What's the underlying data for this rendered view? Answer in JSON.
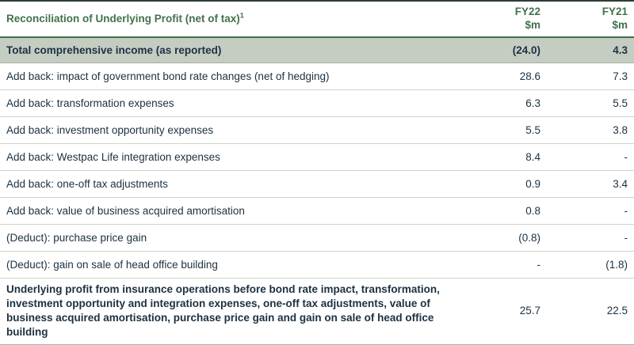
{
  "table": {
    "title": "Reconciliation of Underlying Profit (net of tax)",
    "footnote_marker": "1",
    "columns": [
      {
        "label": "FY22",
        "unit": "$m"
      },
      {
        "label": "FY21",
        "unit": "$m"
      }
    ],
    "rows": [
      {
        "label": "Total comprehensive income (as reported)",
        "fy22": "(24.0)",
        "fy21": "4.3",
        "style": "highlight"
      },
      {
        "label": "Add back: impact of government bond rate changes (net of hedging)",
        "fy22": "28.6",
        "fy21": "7.3"
      },
      {
        "label": "Add back: transformation expenses",
        "fy22": "6.3",
        "fy21": "5.5"
      },
      {
        "label": "Add back: investment opportunity expenses",
        "fy22": "5.5",
        "fy21": "3.8"
      },
      {
        "label": "Add back: Westpac Life integration expenses",
        "fy22": "8.4",
        "fy21": "-"
      },
      {
        "label": "Add back: one-off tax adjustments",
        "fy22": "0.9",
        "fy21": "3.4"
      },
      {
        "label": "Add back: value of business acquired amortisation",
        "fy22": "0.8",
        "fy21": "-"
      },
      {
        "label": "(Deduct): purchase price gain",
        "fy22": "(0.8)",
        "fy21": "-"
      },
      {
        "label": "(Deduct): gain on sale of head office building",
        "fy22": "-",
        "fy21": "(1.8)"
      },
      {
        "label": "Underlying profit from insurance operations before bond rate impact, transformation, investment opportunity and integration expenses, one-off tax adjustments, value of business acquired amortisation, purchase price gain and gain on sale of head office building",
        "fy22": "25.7",
        "fy21": "22.5",
        "style": "total"
      }
    ],
    "colors": {
      "accent": "#44714c",
      "navy": "#1b3141",
      "band": "#c5cdc3",
      "divider": "#cdd5cb",
      "top-border": "#2e3d33",
      "header-rule": "#41704a",
      "band-edge": "#a6b1a4",
      "bottom-border": "#a8b3a9",
      "page-bg": "#ffffff"
    }
  }
}
